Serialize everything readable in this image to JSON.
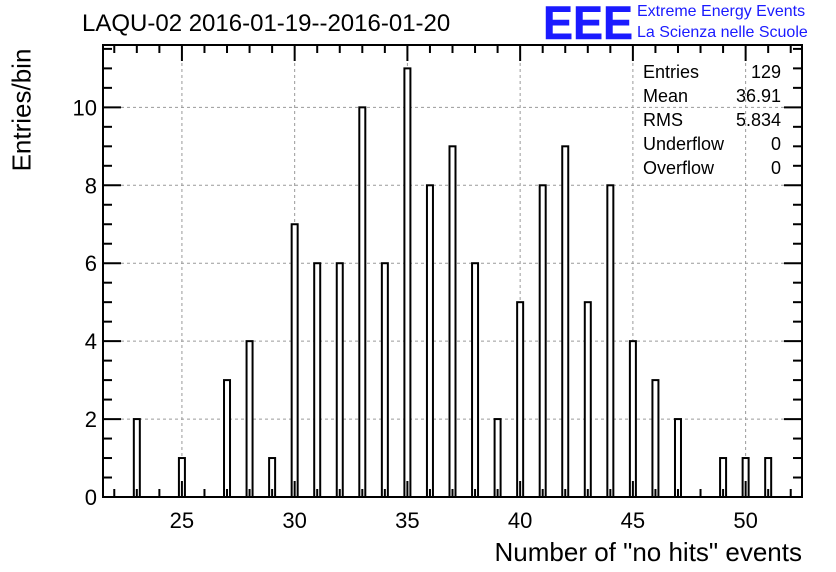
{
  "header": {
    "title": "LAQU-02 2016-01-19--2016-01-20",
    "logo_text": "EEE",
    "logo_line1": "Extreme Energy Events",
    "logo_line2": "La Scienza nelle Scuole"
  },
  "stats": [
    {
      "label": "Entries",
      "value": "129"
    },
    {
      "label": "Mean",
      "value": "36.91"
    },
    {
      "label": "RMS",
      "value": "5.834"
    },
    {
      "label": "Underflow",
      "value": "0"
    },
    {
      "label": "Overflow",
      "value": "0"
    }
  ],
  "colors": {
    "logo": "#1a1aff",
    "axis": "#000000",
    "grid": "#9a9a9a",
    "bar_fill": "#ffffff",
    "bar_stroke": "#000000"
  },
  "chart_data": {
    "type": "bar",
    "title": "LAQU-02 2016-01-19--2016-01-20",
    "xlabel": "Number of \"no hits\" events",
    "ylabel": "Entries/bin",
    "xlim": [
      21.5,
      52.5
    ],
    "ylim": [
      0,
      11.6
    ],
    "grid": true,
    "x_ticks": [
      25,
      30,
      35,
      40,
      45,
      50
    ],
    "y_ticks": [
      0,
      2,
      4,
      6,
      8,
      10
    ],
    "stats_box_position": "top-right",
    "categories": [
      23,
      25,
      27,
      28,
      29,
      30,
      31,
      32,
      33,
      34,
      35,
      36,
      37,
      38,
      39,
      40,
      41,
      42,
      43,
      44,
      45,
      46,
      47,
      49,
      50,
      51
    ],
    "values": [
      2,
      1,
      3,
      4,
      1,
      7,
      6,
      6,
      10,
      6,
      11,
      8,
      9,
      6,
      2,
      5,
      8,
      9,
      5,
      8,
      4,
      3,
      2,
      1,
      1,
      1
    ]
  }
}
